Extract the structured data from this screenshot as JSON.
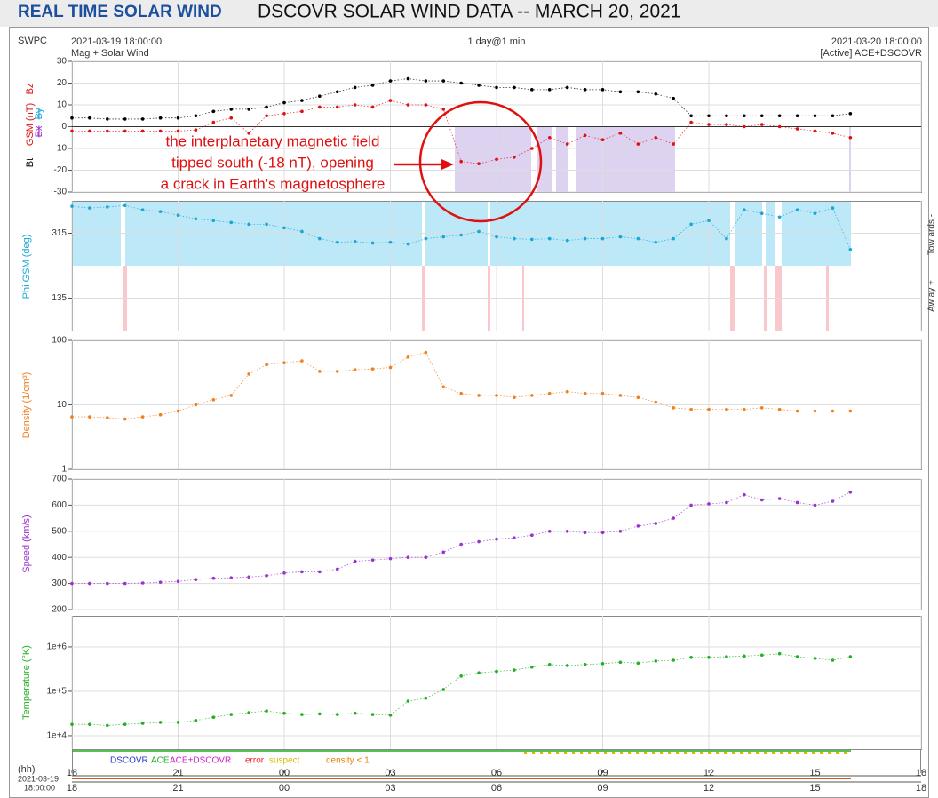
{
  "header": {
    "brand": "REAL TIME SOLAR WIND",
    "title": "DSCOVR SOLAR WIND DATA -- MARCH 20, 2021"
  },
  "plot_info": {
    "org": "SWPC",
    "start": "2021-03-19 18:00:00",
    "subtitle": "Mag + Solar Wind",
    "span": "1 day@1 min",
    "end": "2021-03-20 18:00:00",
    "source": "[Active] ACE+DSCOVR"
  },
  "time": {
    "unit_label": "(hh)",
    "start_date": "2021-03-19",
    "start_time": "18:00:00",
    "xlim": [
      0,
      24
    ],
    "xticks": [
      {
        "value": 0,
        "label": "18"
      },
      {
        "value": 3,
        "label": "21"
      },
      {
        "value": 6,
        "label": "00"
      },
      {
        "value": 9,
        "label": "03"
      },
      {
        "value": 12,
        "label": "06"
      },
      {
        "value": 15,
        "label": "09"
      },
      {
        "value": 18,
        "label": "12"
      },
      {
        "value": 21,
        "label": "15"
      },
      {
        "value": 24,
        "label": "18"
      }
    ],
    "x": [
      0,
      0.5,
      1,
      1.5,
      2,
      2.5,
      3,
      3.5,
      4,
      4.5,
      5,
      5.5,
      6,
      6.5,
      7,
      7.5,
      8,
      8.5,
      9,
      9.5,
      10,
      10.5,
      11,
      11.5,
      12,
      12.5,
      13,
      13.5,
      14,
      14.5,
      15,
      15.5,
      16,
      16.5,
      17,
      17.5,
      18,
      18.5,
      19,
      19.5,
      20,
      20.5,
      21,
      21.5,
      22
    ]
  },
  "chart_data": [
    {
      "type": "scatter",
      "ylabel": "GSM (nT)",
      "other_components": [
        "Bx",
        "By"
      ],
      "ylim": [
        -30,
        30
      ],
      "yticks": [
        30,
        20,
        10,
        0,
        -10,
        -20,
        -30
      ],
      "grid": true,
      "annotation": [
        "the interplanetary magnetic field",
        "tipped south (-18 nT), opening",
        "a crack in Earth's magnetosphere"
      ],
      "series": [
        {
          "name": "Bt",
          "color": "#000000",
          "values": [
            4,
            4,
            3.5,
            3.5,
            3.5,
            4,
            4,
            5,
            7,
            8,
            8,
            9,
            11,
            12,
            14,
            16,
            18,
            19,
            21,
            22,
            21,
            21,
            20,
            19,
            18,
            18,
            17,
            17,
            18,
            17,
            17,
            16,
            16,
            15,
            13,
            5,
            5,
            5,
            5,
            5,
            5,
            5,
            5,
            5,
            6
          ]
        },
        {
          "name": "Bz",
          "color": "#e01010",
          "values": [
            -2,
            -2,
            -2,
            -2,
            -2,
            -2,
            -2,
            -1.5,
            2,
            4,
            -3,
            5,
            6,
            7,
            9,
            9,
            10,
            9,
            12,
            10,
            10,
            8,
            -16,
            -17,
            -15,
            -14,
            -10,
            -5,
            -8,
            -4,
            -6,
            -3,
            -8,
            -5,
            -8,
            2,
            1,
            1,
            0,
            1,
            0,
            -1,
            -2,
            -3,
            -5
          ]
        }
      ]
    },
    {
      "type": "scatter",
      "ylabel": "Phi GSM (deg)",
      "side_labels": [
        "Tow ards -",
        "Aw ay +"
      ],
      "ylim": [
        45,
        405
      ],
      "yticks": [
        135,
        315
      ],
      "grid": true,
      "series": [
        {
          "color": "#1aa7d4",
          "values": [
            390,
            385,
            388,
            392,
            380,
            375,
            365,
            355,
            350,
            345,
            340,
            340,
            330,
            320,
            300,
            290,
            292,
            288,
            290,
            285,
            300,
            305,
            310,
            320,
            305,
            300,
            298,
            300,
            295,
            300,
            300,
            305,
            300,
            290,
            300,
            340,
            350,
            300,
            380,
            370,
            360,
            380,
            370,
            385,
            270
          ]
        }
      ]
    },
    {
      "type": "scatter",
      "ylabel": "Density (1/cm³)",
      "log": true,
      "ylim": [
        1,
        100
      ],
      "yticks": [
        1,
        10,
        100
      ],
      "grid": true,
      "series": [
        {
          "color": "#f07f1e",
          "values": [
            6.5,
            6.5,
            6.3,
            6,
            6.5,
            7,
            8,
            10,
            12,
            14,
            30,
            42,
            45,
            48,
            33,
            33,
            35,
            36,
            38,
            55,
            65,
            19,
            15,
            14,
            14,
            13,
            14,
            15,
            16,
            15,
            15,
            14,
            13,
            11,
            9,
            8.5,
            8.5,
            8.5,
            8.5,
            9,
            8.5,
            8,
            8,
            8,
            8
          ]
        }
      ]
    },
    {
      "type": "scatter",
      "ylabel": "Speed (km/s)",
      "ylim": [
        200,
        700
      ],
      "yticks": [
        200,
        300,
        400,
        500,
        600,
        700
      ],
      "grid": true,
      "series": [
        {
          "color": "#9933cc",
          "values": [
            300,
            300,
            300,
            300,
            302,
            305,
            308,
            315,
            320,
            322,
            325,
            330,
            340,
            345,
            345,
            355,
            385,
            390,
            395,
            400,
            400,
            420,
            450,
            460,
            470,
            475,
            485,
            500,
            500,
            495,
            495,
            500,
            520,
            530,
            550,
            600,
            605,
            610,
            640,
            620,
            625,
            610,
            600,
            615,
            650
          ]
        }
      ]
    },
    {
      "type": "scatter",
      "ylabel": "Temperature (°K)",
      "log": true,
      "ylim": [
        5000,
        5000000
      ],
      "yticks": [
        {
          "value": 10000,
          "label": "1e+4"
        },
        {
          "value": 100000,
          "label": "1e+5"
        },
        {
          "value": 1000000,
          "label": "1e+6"
        }
      ],
      "grid": true,
      "series": [
        {
          "color": "#22b022",
          "values": [
            18000,
            18000,
            17000,
            18000,
            19000,
            20000,
            20000,
            22000,
            26000,
            30000,
            33000,
            36000,
            32000,
            30000,
            31000,
            30000,
            32000,
            30000,
            29000,
            60000,
            70000,
            110000,
            220000,
            260000,
            280000,
            300000,
            350000,
            400000,
            380000,
            400000,
            420000,
            450000,
            430000,
            480000,
            500000,
            580000,
            580000,
            600000,
            620000,
            650000,
            700000,
            600000,
            550000,
            500000,
            600000
          ]
        }
      ]
    }
  ],
  "status_legend": [
    {
      "label": "DSCOVR",
      "color": "#2233cc"
    },
    {
      "label": "ACE",
      "color": "#22aa22"
    },
    {
      "label": "ACE+DSCOVR",
      "color": "#cc22cc"
    },
    {
      "label": "error",
      "color": "#ee2222"
    },
    {
      "label": "suspect",
      "color": "#d8b800"
    },
    {
      "label": "density < 1",
      "color": "#e08000"
    }
  ]
}
